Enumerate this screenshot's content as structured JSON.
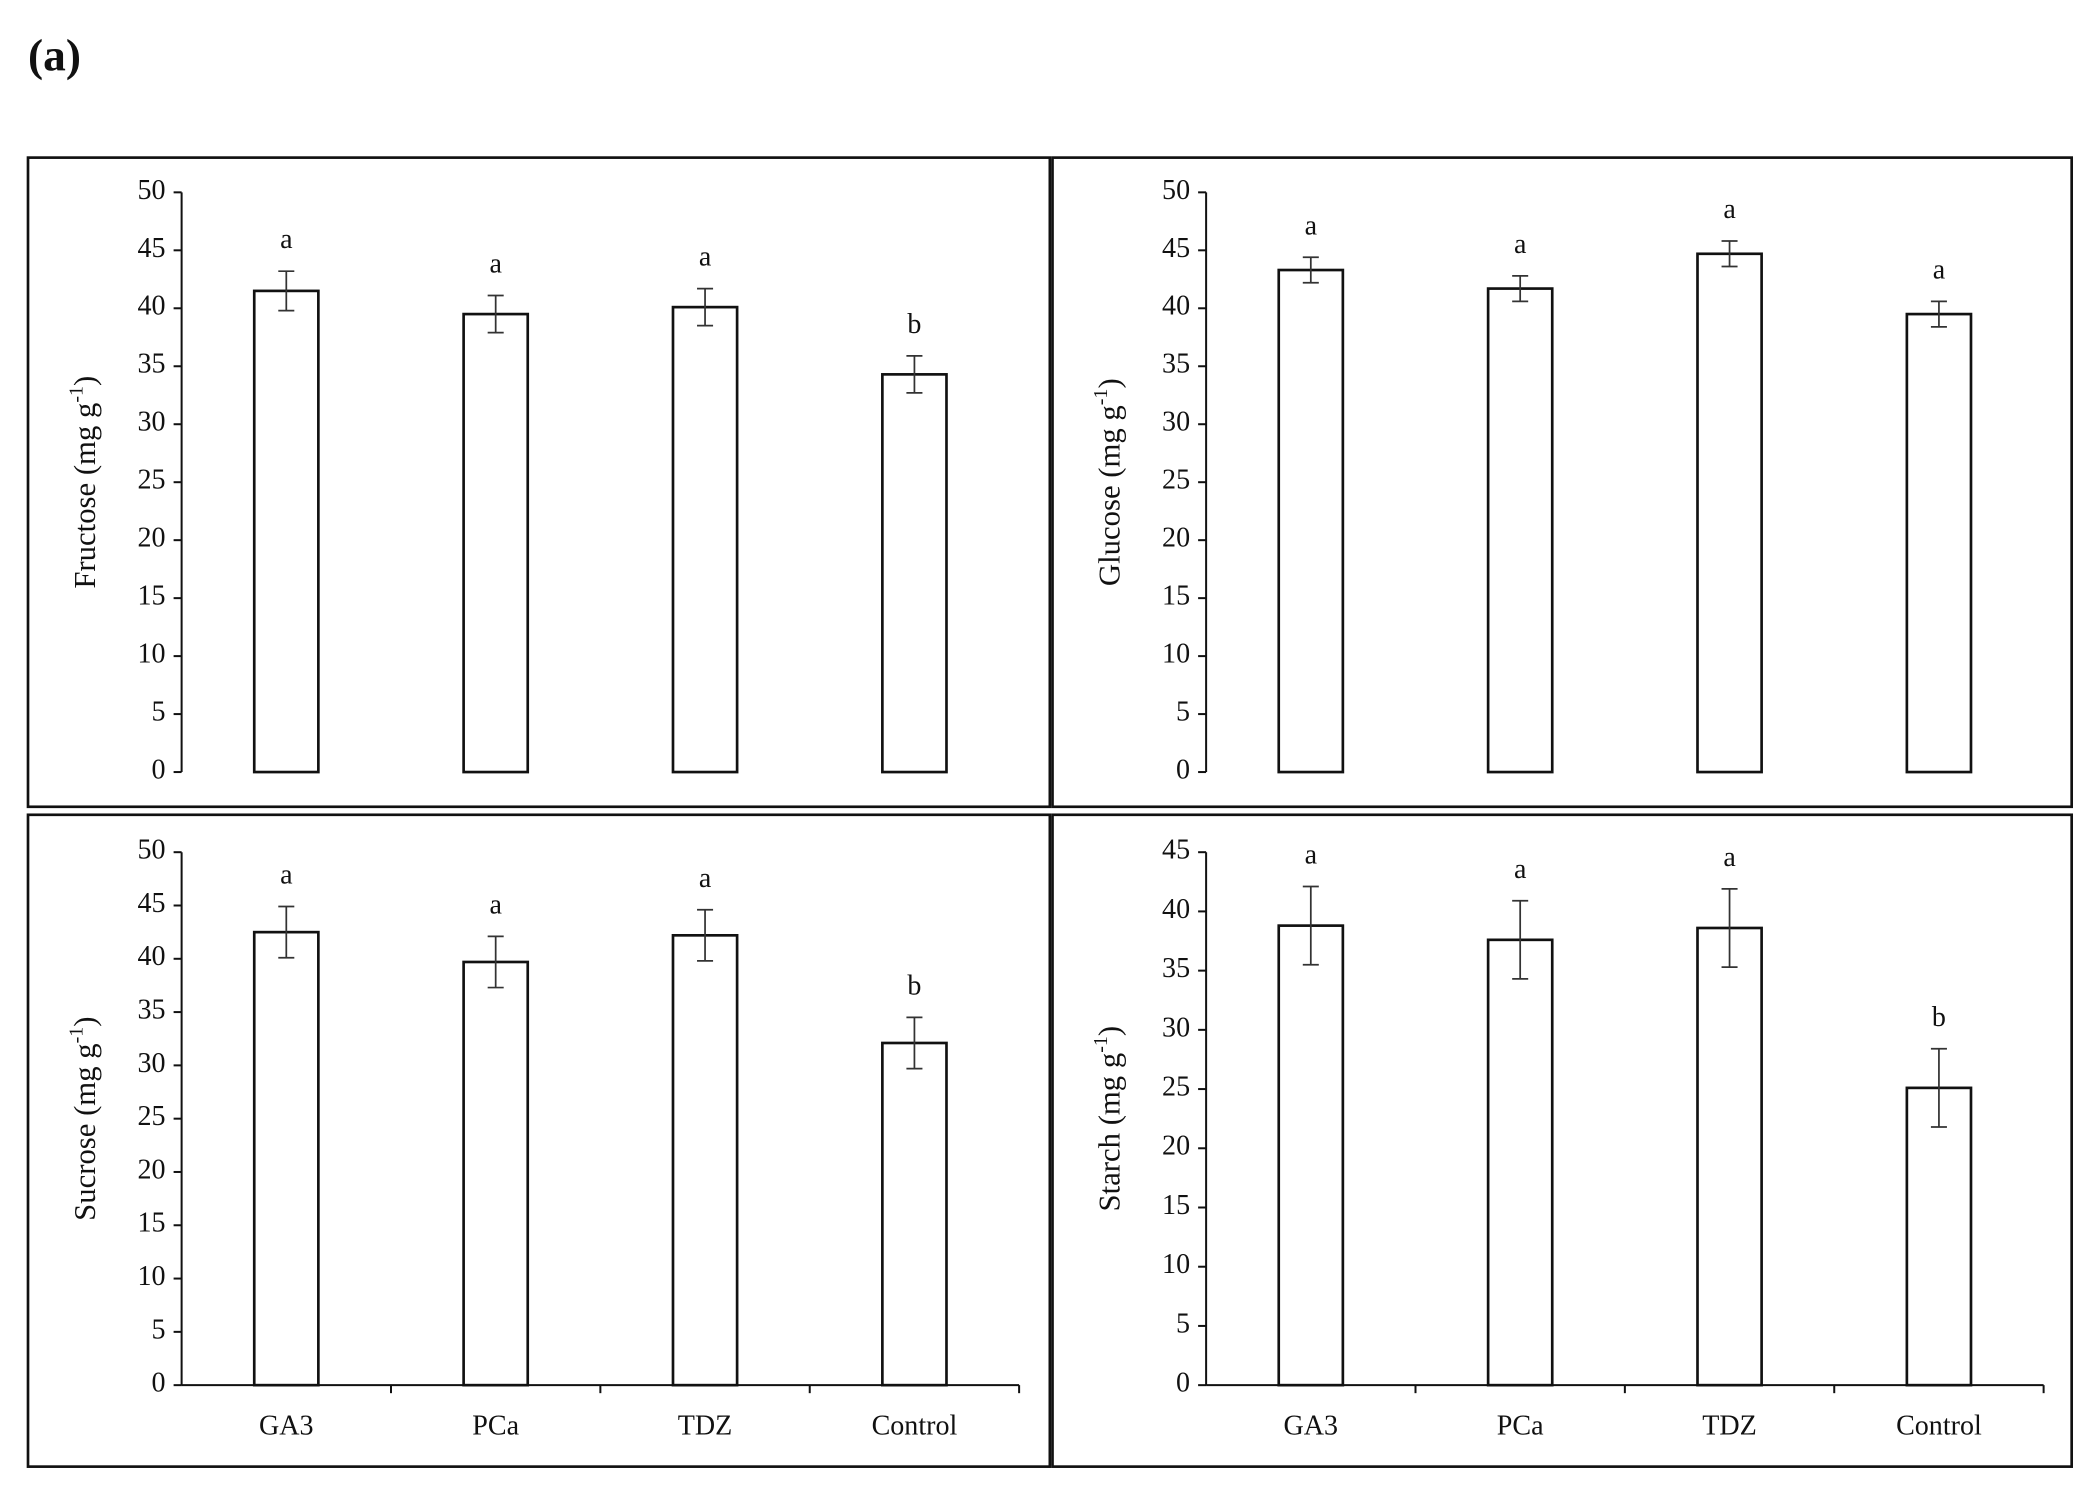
{
  "panel_label": "(a)",
  "chart_data": [
    {
      "type": "bar",
      "ylabel": "Fructose (mg g",
      "ylabel_sup": "-1",
      "ylabel_end": ")",
      "values": [
        41.5,
        39.5,
        40.1,
        34.3
      ],
      "errors": [
        1.7,
        1.6,
        1.6,
        1.6
      ],
      "letters": [
        "a",
        "a",
        "a",
        "b"
      ],
      "color": "#ffffff",
      "ylim": [
        0,
        50
      ],
      "yticks": [
        0,
        5,
        10,
        15,
        20,
        25,
        30,
        35,
        40,
        45,
        50
      ]
    },
    {
      "type": "bar",
      "ylabel": "Glucose (mg g",
      "ylabel_sup": "-1",
      "ylabel_end": ")",
      "values": [
        43.3,
        41.7,
        44.7,
        39.5
      ],
      "errors": [
        1.1,
        1.1,
        1.1,
        1.1
      ],
      "letters": [
        "a",
        "a",
        "a",
        "a"
      ],
      "color": "#ffffff",
      "ylim": [
        0,
        50
      ],
      "yticks": [
        0,
        5,
        10,
        15,
        20,
        25,
        30,
        35,
        40,
        45,
        50
      ]
    },
    {
      "type": "bar",
      "ylabel": "Sucrose (mg g",
      "ylabel_sup": "-1",
      "ylabel_end": ")",
      "categories": [
        "GA3",
        "PCa",
        "TDZ",
        "Control"
      ],
      "values": [
        42.5,
        39.7,
        42.2,
        32.1
      ],
      "errors": [
        2.4,
        2.4,
        2.4,
        2.4
      ],
      "letters": [
        "a",
        "a",
        "a",
        "b"
      ],
      "color": "#ffffff",
      "ylim": [
        0,
        50
      ],
      "yticks": [
        0,
        5,
        10,
        15,
        20,
        25,
        30,
        35,
        40,
        45,
        50
      ]
    },
    {
      "type": "bar",
      "ylabel": "Starch (mg g",
      "ylabel_sup": "-1",
      "ylabel_end": ")",
      "categories": [
        "GA3",
        "PCa",
        "TDZ",
        "Control"
      ],
      "values": [
        38.8,
        37.6,
        38.6,
        25.1
      ],
      "errors": [
        3.3,
        3.3,
        3.3,
        3.3
      ],
      "letters": [
        "a",
        "a",
        "a",
        "b"
      ],
      "color": "#ffffff",
      "ylim": [
        0,
        45
      ],
      "yticks": [
        0,
        5,
        10,
        15,
        20,
        25,
        30,
        35,
        40,
        45
      ]
    }
  ]
}
